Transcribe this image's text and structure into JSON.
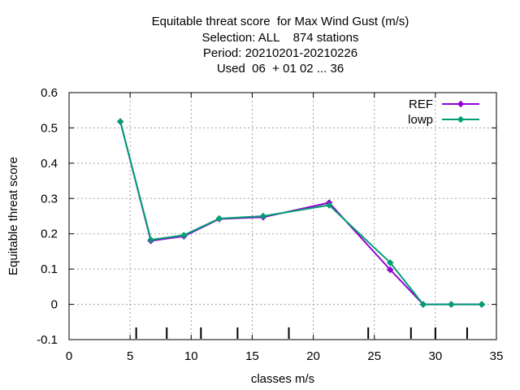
{
  "chart_data": {
    "type": "line",
    "title_lines": [
      "Equitable threat score  for Max Wind Gust (m/s)",
      "Selection: ALL    874 stations",
      "Period: 20210201-20210226",
      "Used  06  + 01 02 ... 36"
    ],
    "xlabel": "classes m/s",
    "ylabel": "Equitable threat score",
    "xlim": [
      0,
      35
    ],
    "ylim": [
      -0.1,
      0.6
    ],
    "xticks": [
      0,
      5,
      10,
      15,
      20,
      25,
      30,
      35
    ],
    "xtick_labels": [
      "0",
      "5",
      "10",
      "15",
      "20",
      "25",
      "30",
      "35"
    ],
    "yticks": [
      -0.1,
      0,
      0.1,
      0.2,
      0.3,
      0.4,
      0.5,
      0.6
    ],
    "ytick_labels": [
      "-0.1",
      "0",
      "0.1",
      "0.2",
      "0.3",
      "0.4",
      "0.5",
      "0.6"
    ],
    "grid": true,
    "legend_position": "top-right",
    "class_markers": [
      5.5,
      8,
      10.8,
      13.8,
      18,
      24.5,
      28,
      30,
      32.6
    ],
    "series": [
      {
        "name": "REF",
        "color": "#9400d3",
        "x": [
          4.2,
          6.7,
          9.4,
          12.3,
          15.9,
          21.3,
          26.3,
          29.0,
          31.3,
          33.8
        ],
        "y": [
          0.518,
          0.18,
          0.193,
          0.242,
          0.247,
          0.288,
          0.098,
          0.0,
          0.0,
          0.0
        ]
      },
      {
        "name": "lowp",
        "color": "#009e73",
        "x": [
          4.2,
          6.7,
          9.4,
          12.3,
          15.9,
          21.3,
          26.3,
          29.0,
          31.3,
          33.8
        ],
        "y": [
          0.518,
          0.183,
          0.196,
          0.243,
          0.25,
          0.281,
          0.118,
          0.0,
          0.0,
          0.0
        ]
      }
    ]
  }
}
